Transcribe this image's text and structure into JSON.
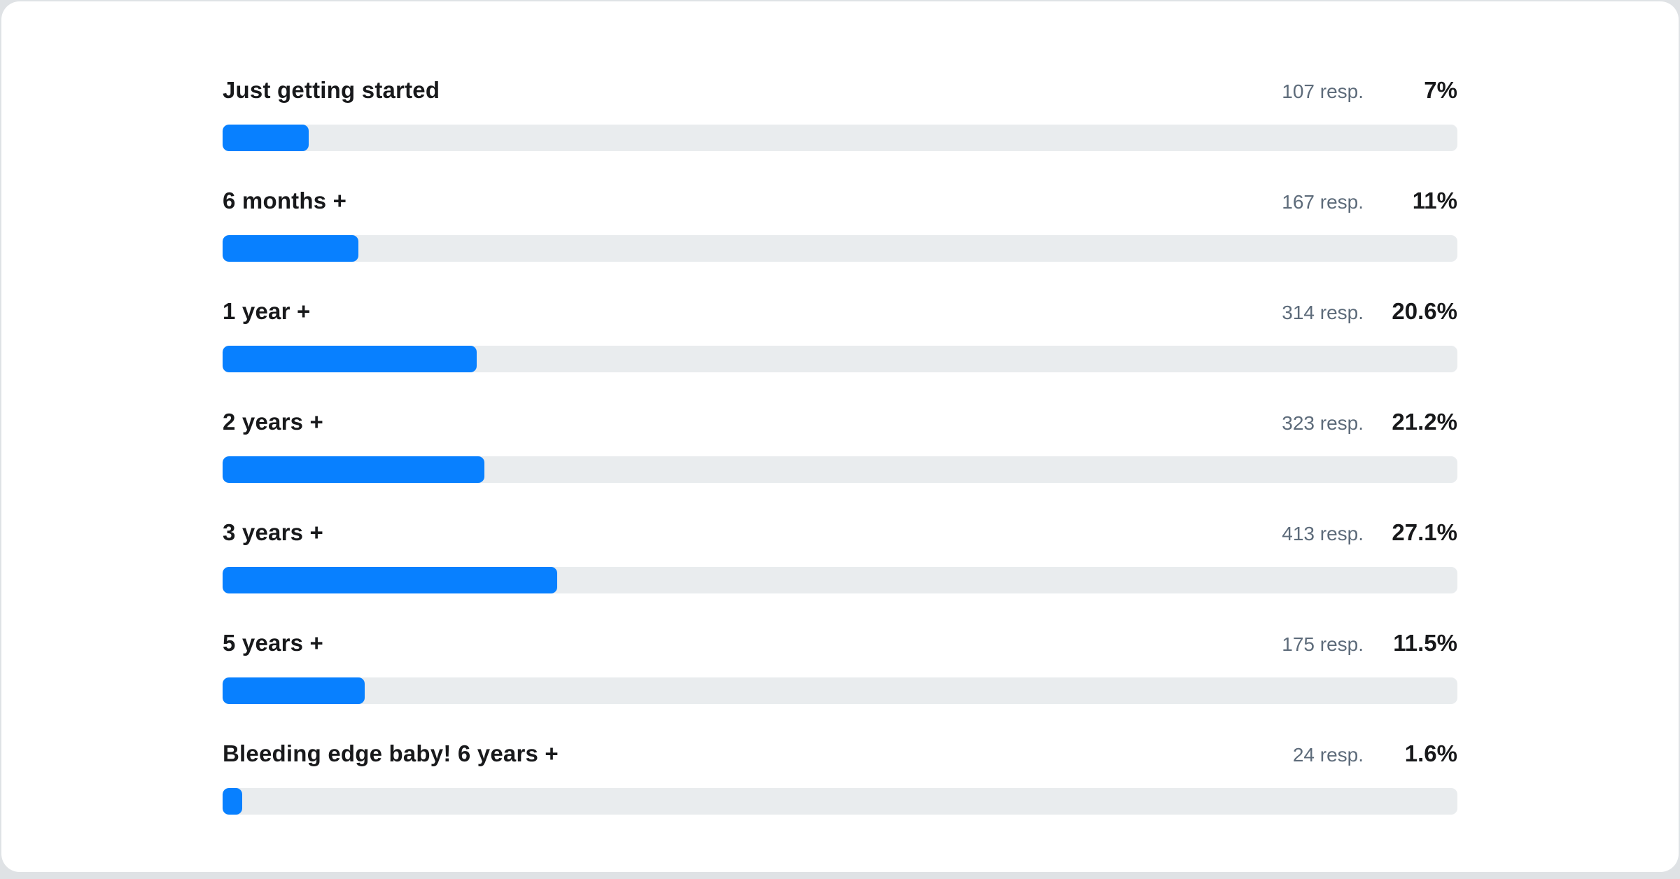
{
  "chart_data": {
    "type": "bar",
    "orientation": "horizontal",
    "title": "",
    "xlabel": "",
    "ylabel": "",
    "value_axis_range": [
      0,
      100
    ],
    "grid": false,
    "legend": false,
    "categories": [
      "Just getting started",
      "6 months +",
      "1 year +",
      "2 years +",
      "3 years +",
      "5 years +",
      "Bleeding edge baby! 6 years +"
    ],
    "series": [
      {
        "name": "respondents",
        "values": [
          107,
          167,
          314,
          323,
          413,
          175,
          24
        ]
      },
      {
        "name": "percent",
        "values": [
          7,
          11,
          20.6,
          21.2,
          27.1,
          11.5,
          1.6
        ]
      }
    ]
  },
  "rows": [
    {
      "label": "Just getting started",
      "resp": "107 resp.",
      "pct": "7%",
      "pct_value": 7
    },
    {
      "label": "6 months +",
      "resp": "167 resp.",
      "pct": "11%",
      "pct_value": 11
    },
    {
      "label": "1 year +",
      "resp": "314 resp.",
      "pct": "20.6%",
      "pct_value": 20.6
    },
    {
      "label": "2 years +",
      "resp": "323 resp.",
      "pct": "21.2%",
      "pct_value": 21.2
    },
    {
      "label": "3 years +",
      "resp": "413 resp.",
      "pct": "27.1%",
      "pct_value": 27.1
    },
    {
      "label": "5 years +",
      "resp": "175 resp.",
      "pct": "11.5%",
      "pct_value": 11.5
    },
    {
      "label": "Bleeding edge baby! 6 years +",
      "resp": "24 resp.",
      "pct": "1.6%",
      "pct_value": 1.6
    }
  ],
  "colors": {
    "bar": "#0880ff",
    "track": "#e9ecee",
    "label": "#18191b",
    "muted": "#5d6b7a",
    "card_bg": "#ffffff",
    "page_bg": "#dfe2e5"
  }
}
